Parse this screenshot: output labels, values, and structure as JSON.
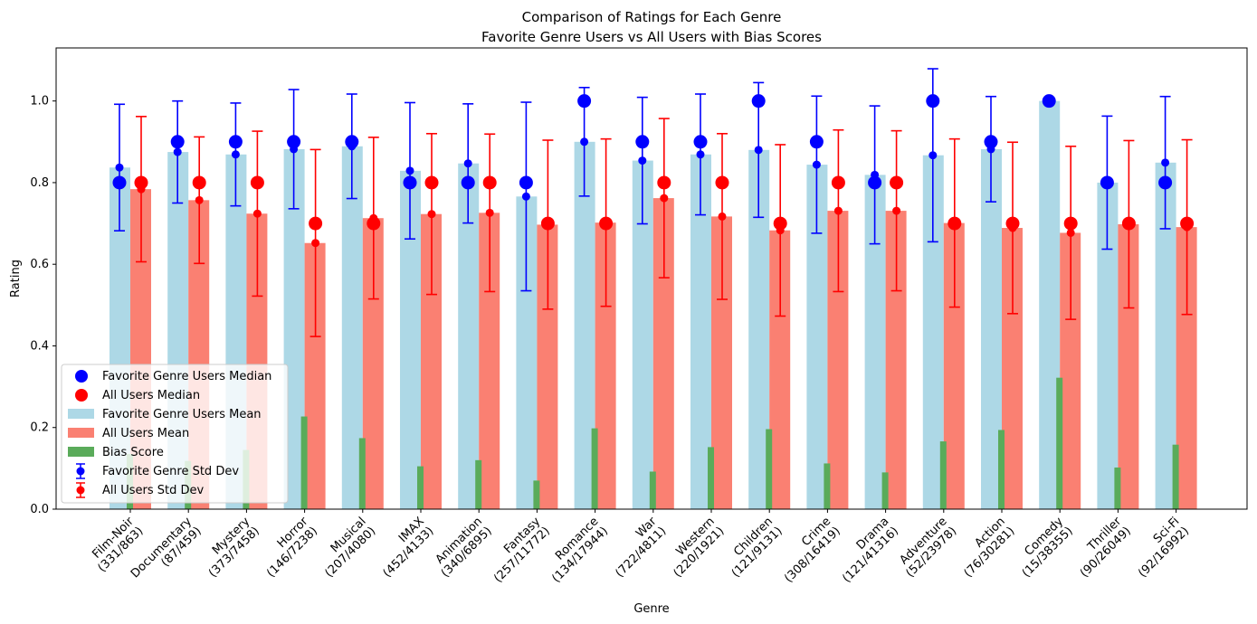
{
  "chart_data": {
    "type": "bar",
    "title": "Comparison of Ratings for Each Genre",
    "subtitle": "Favorite Genre Users vs All Users with Bias Scores",
    "xlabel": "Genre",
    "ylabel": "Rating",
    "ylim": [
      0,
      1.13
    ],
    "yticks": [
      "0.0",
      "0.2",
      "0.4",
      "0.6",
      "0.8",
      "1.0"
    ],
    "grid": false,
    "legend_position": "lower-left",
    "colors": {
      "fav_mean": "#add8e6",
      "all_mean": "#fa8072",
      "bias": "#5aab5a",
      "fav_marker": "#0000ff",
      "all_marker": "#ff0000"
    },
    "categories": [
      "Film-Noir\n(331/863)",
      "Documentary\n(87/459)",
      "Mystery\n(373/7458)",
      "Horror\n(146/7238)",
      "Musical\n(207/4080)",
      "IMAX\n(452/4133)",
      "Animation\n(340/6895)",
      "Fantasy\n(257/11772)",
      "Romance\n(134/17944)",
      "War\n(722/4811)",
      "Western\n(220/1921)",
      "Children\n(121/9131)",
      "Crime\n(308/16419)",
      "Drama\n(121/41316)",
      "Adventure\n(52/23978)",
      "Action\n(76/30281)",
      "Comedy\n(15/38355)",
      "Thriller\n(90/26049)",
      "Sci-Fi\n(92/16992)"
    ],
    "series": [
      {
        "name": "Favorite Genre Users Mean",
        "values": [
          0.837,
          0.875,
          0.869,
          0.882,
          0.889,
          0.829,
          0.847,
          0.766,
          0.9,
          0.854,
          0.869,
          0.88,
          0.844,
          0.819,
          0.867,
          0.882,
          1.0,
          0.8,
          0.849
        ]
      },
      {
        "name": "All Users Mean",
        "values": [
          0.784,
          0.757,
          0.724,
          0.652,
          0.713,
          0.723,
          0.726,
          0.697,
          0.702,
          0.762,
          0.717,
          0.683,
          0.731,
          0.731,
          0.701,
          0.689,
          0.677,
          0.698,
          0.691
        ]
      },
      {
        "name": "Bias Score",
        "values": [
          0.135,
          0.118,
          0.145,
          0.227,
          0.174,
          0.105,
          0.12,
          0.07,
          0.198,
          0.092,
          0.152,
          0.196,
          0.112,
          0.09,
          0.166,
          0.194,
          0.322,
          0.102,
          0.158
        ]
      },
      {
        "name": "Favorite Genre Users Median",
        "values": [
          0.8,
          0.9,
          0.9,
          0.9,
          0.9,
          0.8,
          0.8,
          0.8,
          1.0,
          0.9,
          0.9,
          1.0,
          0.9,
          0.8,
          1.0,
          0.9,
          1.0,
          0.8,
          0.8
        ]
      },
      {
        "name": "All Users Median",
        "values": [
          0.8,
          0.8,
          0.8,
          0.7,
          0.7,
          0.8,
          0.8,
          0.7,
          0.7,
          0.8,
          0.8,
          0.7,
          0.8,
          0.8,
          0.7,
          0.7,
          0.7,
          0.7,
          0.7
        ]
      },
      {
        "name": "Favorite Genre Std Dev",
        "values": [
          0.155,
          0.125,
          0.126,
          0.146,
          0.128,
          0.167,
          0.146,
          0.231,
          0.133,
          0.155,
          0.148,
          0.165,
          0.168,
          0.169,
          0.212,
          0.129,
          0.0,
          0.163,
          0.162
        ]
      },
      {
        "name": "All Users Std Dev",
        "values": [
          0.178,
          0.155,
          0.202,
          0.229,
          0.198,
          0.197,
          0.193,
          0.207,
          0.205,
          0.195,
          0.203,
          0.21,
          0.198,
          0.196,
          0.206,
          0.21,
          0.212,
          0.205,
          0.214
        ]
      }
    ]
  }
}
